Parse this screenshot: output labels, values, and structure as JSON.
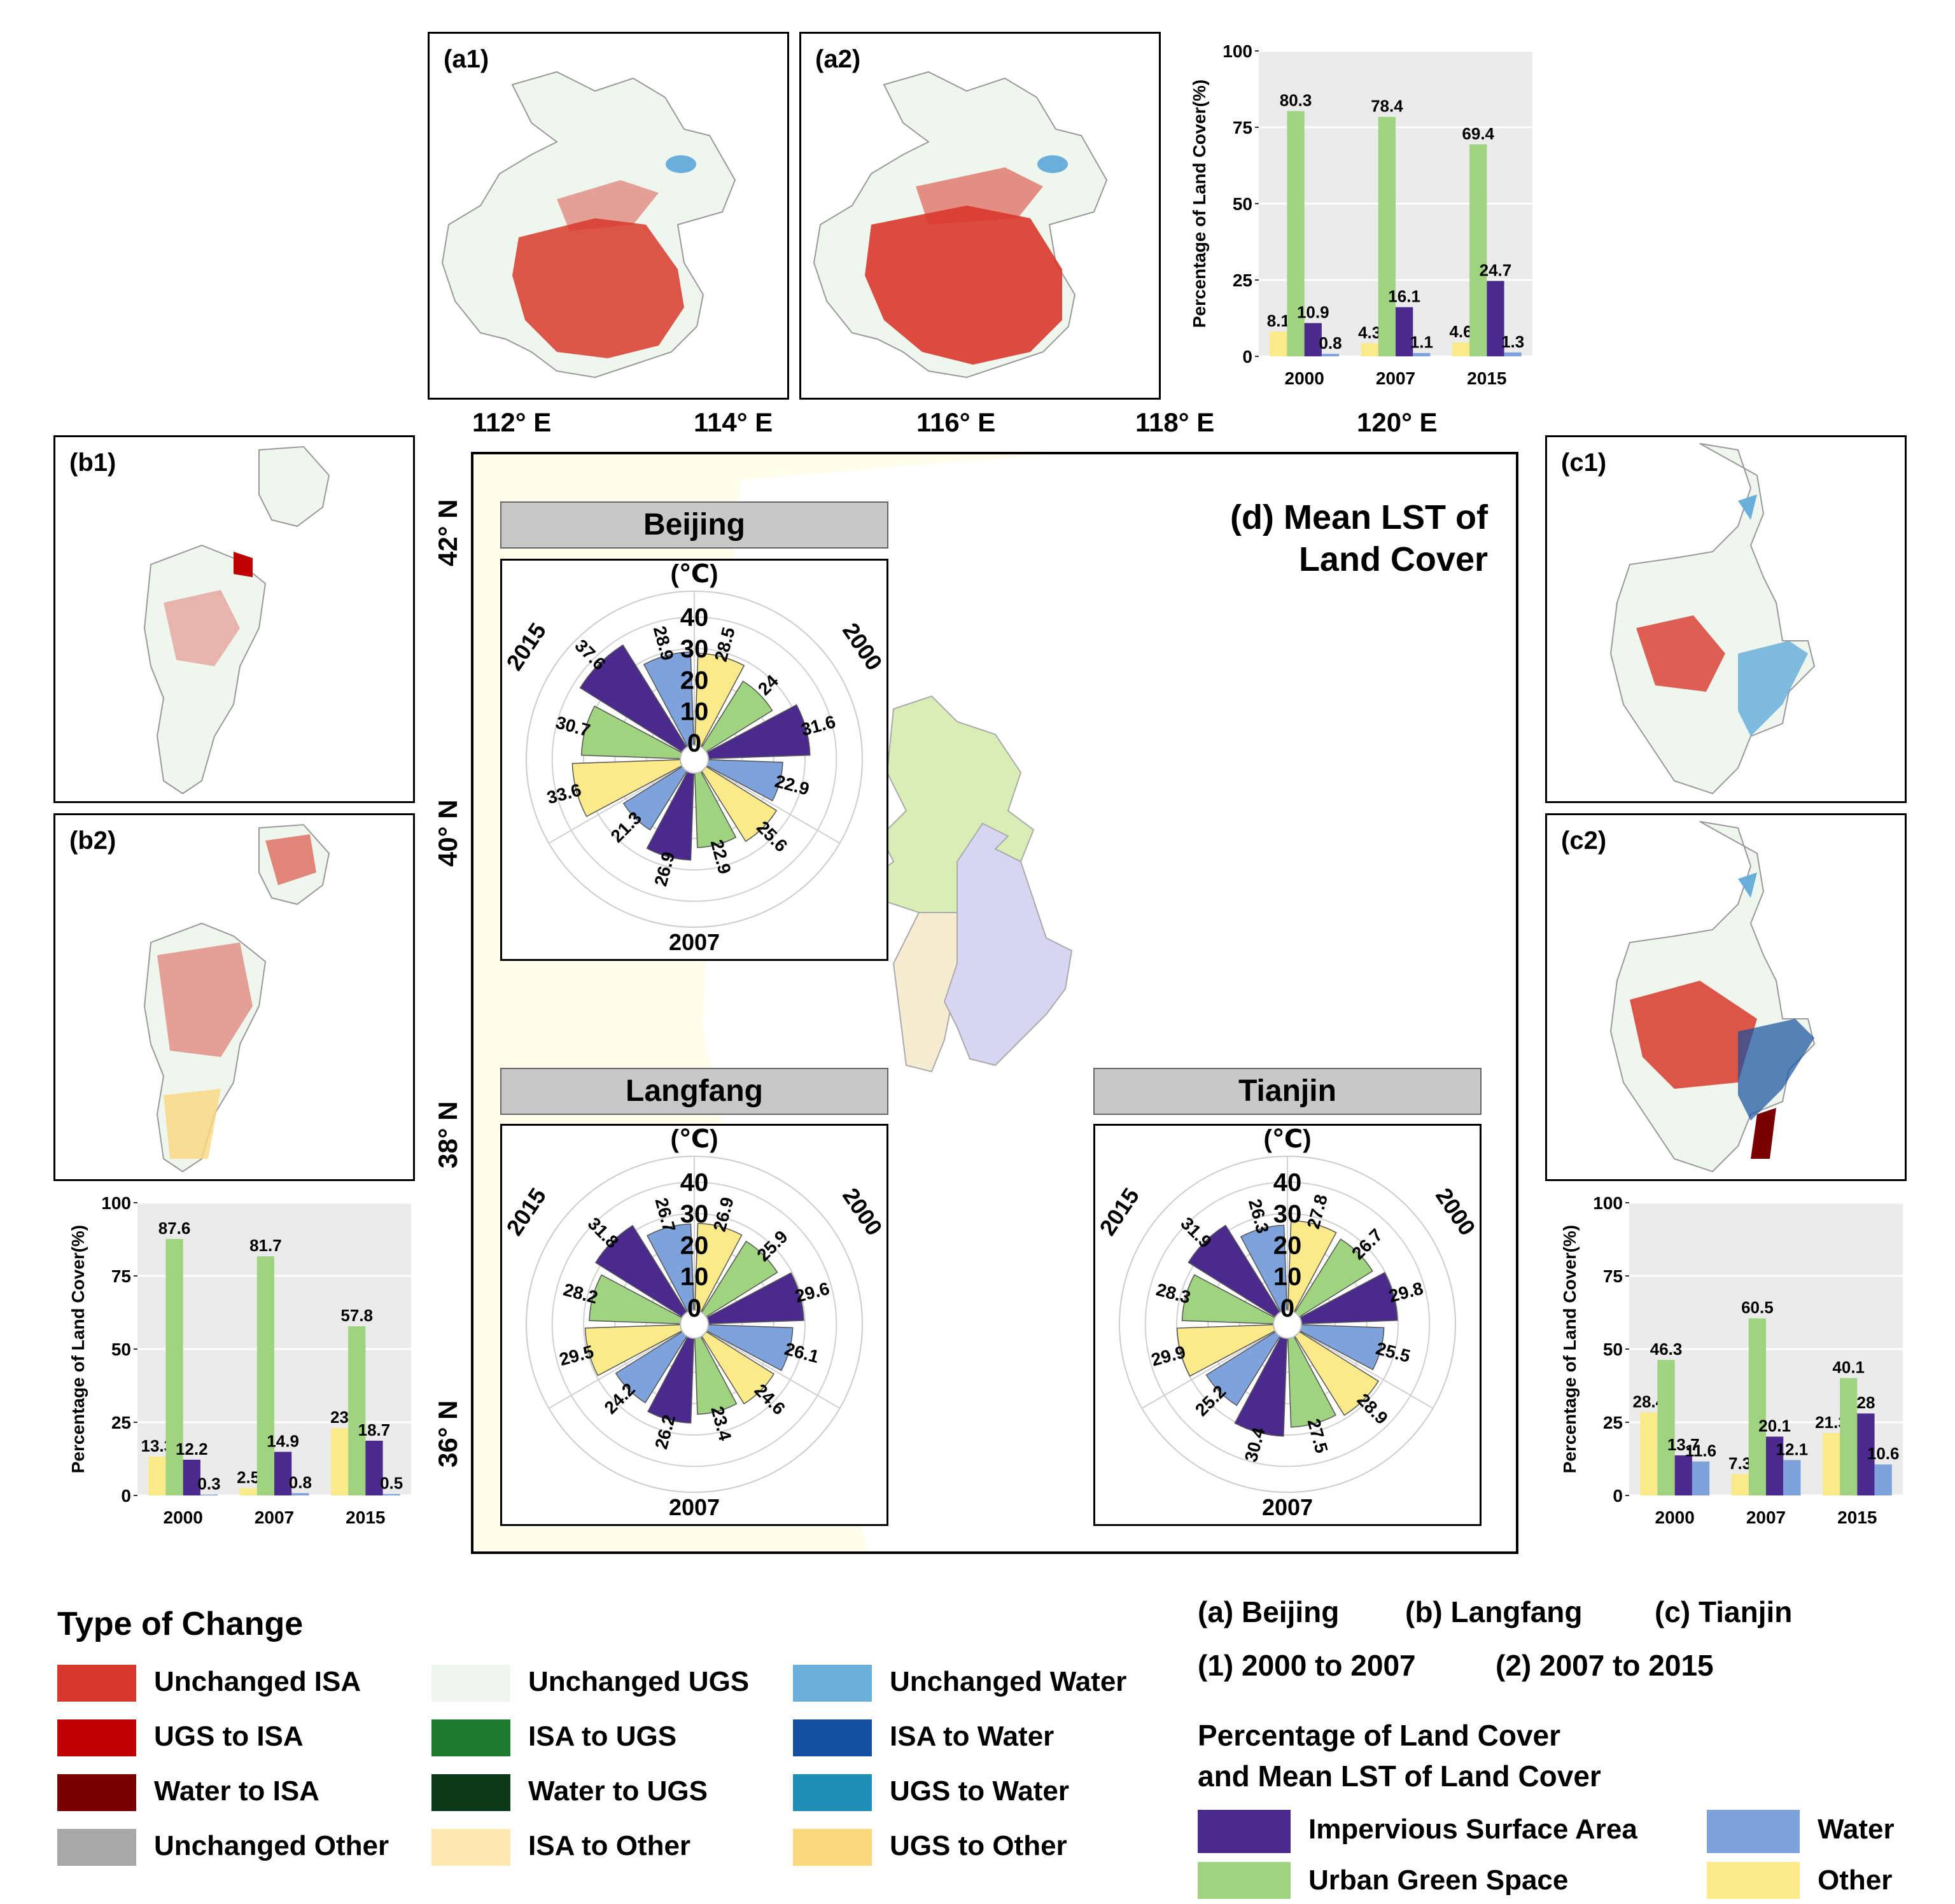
{
  "colors": {
    "isa": "#4a2a8c",
    "ugs": "#9fd37f",
    "water": "#7ea3dc",
    "other": "#fbea8a",
    "unchanged_isa": "#d8382b",
    "ugs_to_isa": "#c00000",
    "water_to_isa": "#7a0000",
    "unchanged_other": "#a8a8a8",
    "unchanged_ugs": "#eef6ee",
    "isa_to_ugs": "#1e7a2e",
    "water_to_ugs": "#0d3a1a",
    "isa_to_other": "#fde8b0",
    "unchanged_water": "#6aaedb",
    "isa_to_water": "#1450a0",
    "ugs_to_water": "#1f8fb8",
    "ugs_to_other": "#fbd77e",
    "mapbg": "#fefdea"
  },
  "panels": {
    "a1": "(a1)",
    "a2": "(a2)",
    "b1": "(b1)",
    "b2": "(b2)",
    "c1": "(c1)",
    "c2": "(c2)"
  },
  "coords": {
    "lon": [
      "112° E",
      "114° E",
      "116° E",
      "118° E",
      "120° E"
    ],
    "lat": [
      "42° N",
      "40° N",
      "38° N",
      "36° N"
    ]
  },
  "map_title_line1": "(d) Mean LST of",
  "map_title_line2": "Land Cover",
  "roses": {
    "beijing": {
      "title": "Beijing",
      "unit": "(℃)",
      "years": [
        "2000",
        "2007",
        "2015"
      ],
      "rings": [
        "0",
        "10",
        "20",
        "30",
        "40"
      ],
      "values": {
        "2000": [
          28.5,
          24,
          31.6,
          22.9
        ],
        "2007": [
          25.6,
          22.9,
          26.9,
          21.3
        ],
        "2015": [
          33.6,
          30.7,
          37.6,
          28.9
        ]
      },
      "labels": {
        "2000": [
          "28.5",
          "24",
          "31.6",
          "22.9"
        ],
        "2007": [
          "25.6",
          "22.9",
          "26.9",
          "21.3"
        ],
        "2015": [
          "33.6",
          "30.7",
          "37.6",
          "28.9"
        ]
      }
    },
    "langfang": {
      "title": "Langfang",
      "unit": "(℃)",
      "years": [
        "2000",
        "2007",
        "2015"
      ],
      "rings": [
        "0",
        "10",
        "20",
        "30",
        "40"
      ],
      "values": {
        "2000": [
          26.9,
          25.9,
          29.6,
          26.1
        ],
        "2007": [
          24.6,
          23.4,
          26.2,
          24.2
        ],
        "2015": [
          29.5,
          28.2,
          31.8,
          26.7
        ]
      },
      "labels": {
        "2000": [
          "26.9",
          "25.9",
          "29.6",
          "26.1"
        ],
        "2007": [
          "24.6",
          "23.4",
          "26.2",
          "24.2"
        ],
        "2015": [
          "29.5",
          "28.2",
          "31.8",
          "26.7"
        ]
      }
    },
    "tianjin": {
      "title": "Tianjin",
      "unit": "(℃)",
      "years": [
        "2000",
        "2007",
        "2015"
      ],
      "rings": [
        "0",
        "10",
        "20",
        "30",
        "40"
      ],
      "values": {
        "2000": [
          27.8,
          26.7,
          29.8,
          25.5
        ],
        "2007": [
          28.9,
          27.5,
          30.4,
          25.2
        ],
        "2015": [
          29.9,
          28.3,
          31.9,
          26.3
        ]
      },
      "labels": {
        "2000": [
          "27.8",
          "26.7",
          "29.8",
          "25.5"
        ],
        "2007": [
          "28.9",
          "27.5",
          "30.4",
          "25.2"
        ],
        "2015": [
          "29.9",
          "28.3",
          "31.9",
          "26.3"
        ]
      }
    }
  },
  "chart_data": [
    {
      "type": "bar",
      "id": "beijing",
      "ylabel": "Percentage of Land Cover(%)",
      "ylim": [
        0,
        100
      ],
      "yticks": [
        "0",
        "25",
        "50",
        "75",
        "100"
      ],
      "categories": [
        "2000",
        "2007",
        "2015"
      ],
      "series": [
        {
          "name": "Other",
          "values": [
            8.1,
            4.3,
            4.6
          ],
          "labels": [
            "8.1",
            "4.3",
            "4.6"
          ]
        },
        {
          "name": "Urban Green Space",
          "values": [
            80.3,
            78.4,
            69.4
          ],
          "labels": [
            "80.3",
            "78.4",
            "69.4"
          ]
        },
        {
          "name": "Impervious Surface Area",
          "values": [
            10.9,
            16.1,
            24.7
          ],
          "labels": [
            "10.9",
            "16.1",
            "24.7"
          ]
        },
        {
          "name": "Water",
          "values": [
            0.8,
            1.1,
            1.3
          ],
          "labels": [
            "0.8",
            "1.1",
            "1.3"
          ]
        }
      ]
    },
    {
      "type": "bar",
      "id": "langfang",
      "ylabel": "Percentage of Land Cover(%)",
      "ylim": [
        0,
        100
      ],
      "yticks": [
        "0",
        "25",
        "50",
        "75",
        "100"
      ],
      "categories": [
        "2000",
        "2007",
        "2015"
      ],
      "series": [
        {
          "name": "Other",
          "values": [
            13.3,
            2.5,
            23
          ],
          "labels": [
            "13.3",
            "2.5",
            "23"
          ]
        },
        {
          "name": "Urban Green Space",
          "values": [
            87.6,
            81.7,
            57.8
          ],
          "labels": [
            "87.6",
            "81.7",
            "57.8"
          ]
        },
        {
          "name": "Impervious Surface Area",
          "values": [
            12.2,
            14.9,
            18.7
          ],
          "labels": [
            "12.2",
            "14.9",
            "18.7"
          ]
        },
        {
          "name": "Water",
          "values": [
            0.3,
            0.8,
            0.5
          ],
          "labels": [
            "0.3",
            "0.8",
            "0.5"
          ]
        }
      ]
    },
    {
      "type": "bar",
      "id": "tianjin",
      "ylabel": "Percentage of Land Cover(%)",
      "ylim": [
        0,
        100
      ],
      "yticks": [
        "0",
        "25",
        "50",
        "75",
        "100"
      ],
      "categories": [
        "2000",
        "2007",
        "2015"
      ],
      "series": [
        {
          "name": "Other",
          "values": [
            28.4,
            7.3,
            21.3
          ],
          "labels": [
            "28.4",
            "7.3",
            "21.3"
          ]
        },
        {
          "name": "Urban Green Space",
          "values": [
            46.3,
            60.5,
            40.1
          ],
          "labels": [
            "46.3",
            "60.5",
            "40.1"
          ]
        },
        {
          "name": "Impervious Surface Area",
          "values": [
            13.7,
            20.1,
            28
          ],
          "labels": [
            "13.7",
            "20.1",
            "28"
          ]
        },
        {
          "name": "Water",
          "values": [
            11.6,
            12.1,
            10.6
          ],
          "labels": [
            "11.6",
            "12.1",
            "10.6"
          ]
        }
      ]
    }
  ],
  "legend": {
    "title": "Type of Change",
    "items": [
      {
        "label": "Unchanged ISA",
        "color": "#d8382b"
      },
      {
        "label": "UGS to ISA",
        "color": "#c00000"
      },
      {
        "label": "Water to ISA",
        "color": "#7a0000"
      },
      {
        "label": "Unchanged Other",
        "color": "#a8a8a8"
      },
      {
        "label": "Unchanged UGS",
        "color": "#eef6ee"
      },
      {
        "label": "ISA to UGS",
        "color": "#1e7a2e"
      },
      {
        "label": "Water to UGS",
        "color": "#0d3a1a"
      },
      {
        "label": "ISA to Other",
        "color": "#fde8b0"
      },
      {
        "label": "Unchanged Water",
        "color": "#6aaedb"
      },
      {
        "label": "ISA to Water",
        "color": "#1450a0"
      },
      {
        "label": "UGS to Water",
        "color": "#1f8fb8"
      },
      {
        "label": "UGS to Other",
        "color": "#fbd77e"
      }
    ]
  },
  "notes": {
    "a": "(a) Beijing",
    "b": "(b) Langfang",
    "c": "(c) Tianjin",
    "p1": "(1) 2000 to 2007",
    "p2": "(2) 2007 to 2015",
    "lc_title1": "Percentage of Land Cover",
    "lc_title2": "and Mean LST of Land Cover",
    "isa": "Impervious Surface Area",
    "water": "Water",
    "ugs": "Urban Green Space",
    "other": "Other"
  }
}
